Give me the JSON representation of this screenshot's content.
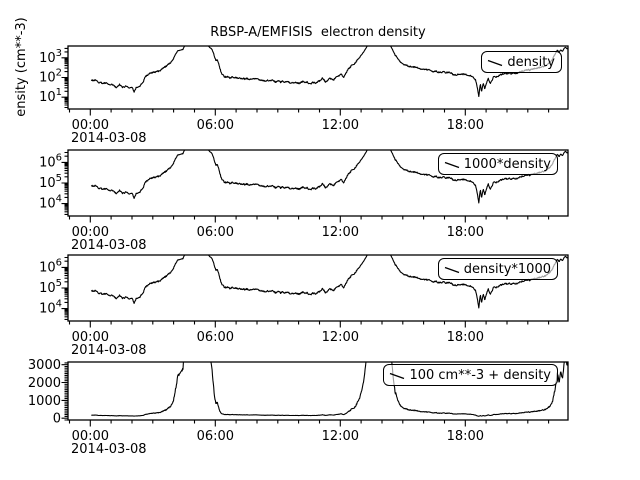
{
  "figure": {
    "background_color": "#ffffff",
    "curve_color": "#000000"
  },
  "chart_data": {
    "type": "line",
    "title": "RBSP-A/EMFISIS  electron density",
    "ylabel_visible": "ensity (cm**-3)",
    "x_axis": {
      "range_hours": [
        -1.07,
        22.93
      ],
      "major_tick_hours": [
        0,
        6,
        12,
        18
      ],
      "major_tick_labels": [
        "00:00",
        "06:00",
        "12:00",
        "18:00"
      ],
      "minor_tick_step_hours": 1,
      "date_label": "2014-03-08"
    },
    "panels": [
      {
        "legend": "density",
        "yscale": "log",
        "scale": 1,
        "offset": 0,
        "y_log_range": [
          0.4,
          3.6
        ],
        "y_tick_exponents": [
          1,
          2,
          3
        ]
      },
      {
        "legend": "1000*density",
        "yscale": "log",
        "scale": 1000,
        "offset": 0,
        "y_log_range": [
          3.4,
          6.6
        ],
        "y_tick_exponents": [
          4,
          5,
          6
        ]
      },
      {
        "legend": "density*1000",
        "yscale": "log",
        "scale": 1000,
        "offset": 0,
        "y_log_range": [
          3.4,
          6.6
        ],
        "y_tick_exponents": [
          4,
          5,
          6
        ]
      },
      {
        "legend": "100 cm**-3 + density",
        "yscale": "linear",
        "scale": 1,
        "offset": 100,
        "ylim": [
          -100,
          3150
        ],
        "y_major_ticks": [
          0,
          1000,
          2000,
          3000
        ],
        "y_minor_step": 100
      }
    ],
    "data_time_range_hours": [
      0.05,
      22.93
    ],
    "density_keypoints_cm3": [
      [
        0.05,
        75
      ],
      [
        0.3,
        65
      ],
      [
        0.6,
        52
      ],
      [
        0.9,
        45
      ],
      [
        1.1,
        38
      ],
      [
        1.25,
        32
      ],
      [
        1.4,
        44
      ],
      [
        1.55,
        30
      ],
      [
        1.7,
        40
      ],
      [
        1.85,
        29
      ],
      [
        2.0,
        35
      ],
      [
        2.1,
        19
      ],
      [
        2.2,
        33
      ],
      [
        2.4,
        40
      ],
      [
        2.55,
        60
      ],
      [
        2.65,
        130
      ],
      [
        2.9,
        160
      ],
      [
        3.2,
        210
      ],
      [
        3.5,
        300
      ],
      [
        3.8,
        520
      ],
      [
        4.0,
        900
      ],
      [
        4.1,
        1500
      ],
      [
        4.2,
        2300
      ],
      [
        4.45,
        2750
      ],
      [
        4.55,
        4500
      ],
      [
        4.7,
        5200
      ],
      [
        5.6,
        5200
      ],
      [
        5.72,
        3400
      ],
      [
        5.82,
        2900
      ],
      [
        5.92,
        1600
      ],
      [
        6.02,
        800
      ],
      [
        6.1,
        720
      ],
      [
        6.2,
        340
      ],
      [
        6.32,
        140
      ],
      [
        6.5,
        110
      ],
      [
        6.7,
        100
      ],
      [
        7.0,
        92
      ],
      [
        7.5,
        85
      ],
      [
        8.0,
        78
      ],
      [
        8.5,
        70
      ],
      [
        9.0,
        63
      ],
      [
        9.5,
        58
      ],
      [
        10.0,
        54
      ],
      [
        10.3,
        60
      ],
      [
        10.55,
        49
      ],
      [
        10.8,
        57
      ],
      [
        11.0,
        64
      ],
      [
        11.15,
        84
      ],
      [
        11.3,
        58
      ],
      [
        11.5,
        94
      ],
      [
        11.7,
        82
      ],
      [
        11.9,
        122
      ],
      [
        12.05,
        155
      ],
      [
        12.15,
        108
      ],
      [
        12.3,
        195
      ],
      [
        12.5,
        340
      ],
      [
        12.7,
        580
      ],
      [
        12.9,
        980
      ],
      [
        13.1,
        1850
      ],
      [
        13.25,
        3300
      ],
      [
        13.35,
        5200
      ],
      [
        14.35,
        5200
      ],
      [
        14.5,
        2700
      ],
      [
        14.65,
        1350
      ],
      [
        14.8,
        800
      ],
      [
        15.0,
        520
      ],
      [
        15.25,
        400
      ],
      [
        15.5,
        330
      ],
      [
        15.8,
        280
      ],
      [
        16.1,
        240
      ],
      [
        16.5,
        205
      ],
      [
        17.0,
        175
      ],
      [
        17.5,
        152
      ],
      [
        18.0,
        132
      ],
      [
        18.3,
        112
      ],
      [
        18.5,
        75
      ],
      [
        18.58,
        30
      ],
      [
        18.65,
        10
      ],
      [
        18.72,
        48
      ],
      [
        18.78,
        18
      ],
      [
        18.86,
        55
      ],
      [
        18.94,
        24
      ],
      [
        19.02,
        52
      ],
      [
        19.1,
        95
      ],
      [
        19.2,
        45
      ],
      [
        19.35,
        110
      ],
      [
        19.5,
        120
      ],
      [
        19.8,
        140
      ],
      [
        20.1,
        160
      ],
      [
        20.4,
        180
      ],
      [
        20.7,
        205
      ],
      [
        21.0,
        235
      ],
      [
        21.3,
        275
      ],
      [
        21.6,
        330
      ],
      [
        21.85,
        420
      ],
      [
        22.05,
        560
      ],
      [
        22.2,
        900
      ],
      [
        22.32,
        1600
      ],
      [
        22.42,
        2500
      ],
      [
        22.5,
        1900
      ],
      [
        22.58,
        2700
      ],
      [
        22.66,
        2200
      ],
      [
        22.74,
        3000
      ],
      [
        22.82,
        3500
      ],
      [
        22.88,
        2800
      ],
      [
        22.93,
        3200
      ]
    ],
    "noise": {
      "seed": 42,
      "coarse_step_h": 0.09,
      "coarse_amp_log10": 0.05,
      "fine_amp_log10": 0.03,
      "samples": 1150
    }
  }
}
